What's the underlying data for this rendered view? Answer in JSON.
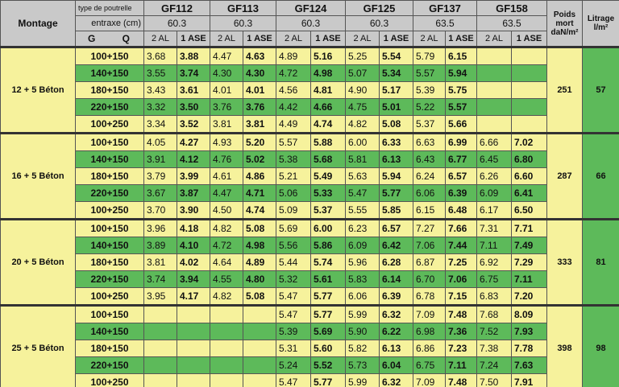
{
  "header": {
    "montage": "Montage",
    "type_label": "type de poutrelle",
    "entraxe_label": "entraxe (cm)",
    "g": "G",
    "q": "Q",
    "sub_labels": [
      "2 AL",
      "1 ASE"
    ],
    "products": [
      {
        "name": "GF112",
        "entraxe": "60.3"
      },
      {
        "name": "GF113",
        "entraxe": "60.3"
      },
      {
        "name": "GF124",
        "entraxe": "60.3"
      },
      {
        "name": "GF125",
        "entraxe": "60.3"
      },
      {
        "name": "GF137",
        "entraxe": "63.5"
      },
      {
        "name": "GF158",
        "entraxe": "63.5"
      }
    ],
    "poids": "Poids mort daN/m²",
    "litrage": "Litrage l/m²"
  },
  "groups": [
    {
      "montage": "12 + 5 Béton",
      "poids": "251",
      "litrage": "57",
      "rows": [
        {
          "load": "100+150",
          "cells": [
            "3.68",
            "3.88",
            "4.47",
            "4.63",
            "4.89",
            "5.16",
            "5.25",
            "5.54",
            "5.79",
            "6.15",
            null,
            null
          ]
        },
        {
          "load": "140+150",
          "cells": [
            "3.55",
            "3.74",
            "4.30",
            "4.30",
            "4.72",
            "4.98",
            "5.07",
            "5.34",
            "5.57",
            "5.94",
            null,
            null
          ]
        },
        {
          "load": "180+150",
          "cells": [
            "3.43",
            "3.61",
            "4.01",
            "4.01",
            "4.56",
            "4.81",
            "4.90",
            "5.17",
            "5.39",
            "5.75",
            null,
            null
          ]
        },
        {
          "load": "220+150",
          "cells": [
            "3.32",
            "3.50",
            "3.76",
            "3.76",
            "4.42",
            "4.66",
            "4.75",
            "5.01",
            "5.22",
            "5.57",
            null,
            null
          ]
        },
        {
          "load": "100+250",
          "cells": [
            "3.34",
            "3.52",
            "3.81",
            "3.81",
            "4.49",
            "4.74",
            "4.82",
            "5.08",
            "5.37",
            "5.66",
            null,
            null
          ]
        }
      ]
    },
    {
      "montage": "16 + 5 Béton",
      "poids": "287",
      "litrage": "66",
      "rows": [
        {
          "load": "100+150",
          "cells": [
            "4.05",
            "4.27",
            "4.93",
            "5.20",
            "5.57",
            "5.88",
            "6.00",
            "6.33",
            "6.63",
            "6.99",
            "6.66",
            "7.02"
          ]
        },
        {
          "load": "140+150",
          "cells": [
            "3.91",
            "4.12",
            "4.76",
            "5.02",
            "5.38",
            "5.68",
            "5.81",
            "6.13",
            "6.43",
            "6.77",
            "6.45",
            "6.80"
          ]
        },
        {
          "load": "180+150",
          "cells": [
            "3.79",
            "3.99",
            "4.61",
            "4.86",
            "5.21",
            "5.49",
            "5.63",
            "5.94",
            "6.24",
            "6.57",
            "6.26",
            "6.60"
          ]
        },
        {
          "load": "220+150",
          "cells": [
            "3.67",
            "3.87",
            "4.47",
            "4.71",
            "5.06",
            "5.33",
            "5.47",
            "5.77",
            "6.06",
            "6.39",
            "6.09",
            "6.41"
          ]
        },
        {
          "load": "100+250",
          "cells": [
            "3.70",
            "3.90",
            "4.50",
            "4.74",
            "5.09",
            "5.37",
            "5.55",
            "5.85",
            "6.15",
            "6.48",
            "6.17",
            "6.50"
          ]
        }
      ]
    },
    {
      "montage": "20 + 5 Béton",
      "poids": "333",
      "litrage": "81",
      "rows": [
        {
          "load": "100+150",
          "cells": [
            "3.96",
            "4.18",
            "4.82",
            "5.08",
            "5.69",
            "6.00",
            "6.23",
            "6.57",
            "7.27",
            "7.66",
            "7.31",
            "7.71"
          ]
        },
        {
          "load": "140+150",
          "cells": [
            "3.89",
            "4.10",
            "4.72",
            "4.98",
            "5.56",
            "5.86",
            "6.09",
            "6.42",
            "7.06",
            "7.44",
            "7.11",
            "7.49"
          ]
        },
        {
          "load": "180+150",
          "cells": [
            "3.81",
            "4.02",
            "4.64",
            "4.89",
            "5.44",
            "5.74",
            "5.96",
            "6.28",
            "6.87",
            "7.25",
            "6.92",
            "7.29"
          ]
        },
        {
          "load": "220+150",
          "cells": [
            "3.74",
            "3.94",
            "4.55",
            "4.80",
            "5.32",
            "5.61",
            "5.83",
            "6.14",
            "6.70",
            "7.06",
            "6.75",
            "7.11"
          ]
        },
        {
          "load": "100+250",
          "cells": [
            "3.95",
            "4.17",
            "4.82",
            "5.08",
            "5.47",
            "5.77",
            "6.06",
            "6.39",
            "6.78",
            "7.15",
            "6.83",
            "7.20"
          ]
        }
      ]
    },
    {
      "montage": "25 + 5 Béton",
      "poids": "398",
      "litrage": "98",
      "rows": [
        {
          "load": "100+150",
          "cells": [
            null,
            null,
            null,
            null,
            "5.47",
            "5.77",
            "5.99",
            "6.32",
            "7.09",
            "7.48",
            "7.68",
            "8.09"
          ]
        },
        {
          "load": "140+150",
          "cells": [
            null,
            null,
            null,
            null,
            "5.39",
            "5.69",
            "5.90",
            "6.22",
            "6.98",
            "7.36",
            "7.52",
            "7.93"
          ]
        },
        {
          "load": "180+150",
          "cells": [
            null,
            null,
            null,
            null,
            "5.31",
            "5.60",
            "5.82",
            "6.13",
            "6.86",
            "7.23",
            "7.38",
            "7.78"
          ]
        },
        {
          "load": "220+150",
          "cells": [
            null,
            null,
            null,
            null,
            "5.24",
            "5.52",
            "5.73",
            "6.04",
            "6.75",
            "7.11",
            "7.24",
            "7.63"
          ]
        },
        {
          "load": "100+250",
          "cells": [
            null,
            null,
            null,
            null,
            "5.47",
            "5.77",
            "5.99",
            "6.32",
            "7.09",
            "7.48",
            "7.50",
            "7.91"
          ]
        }
      ]
    }
  ]
}
